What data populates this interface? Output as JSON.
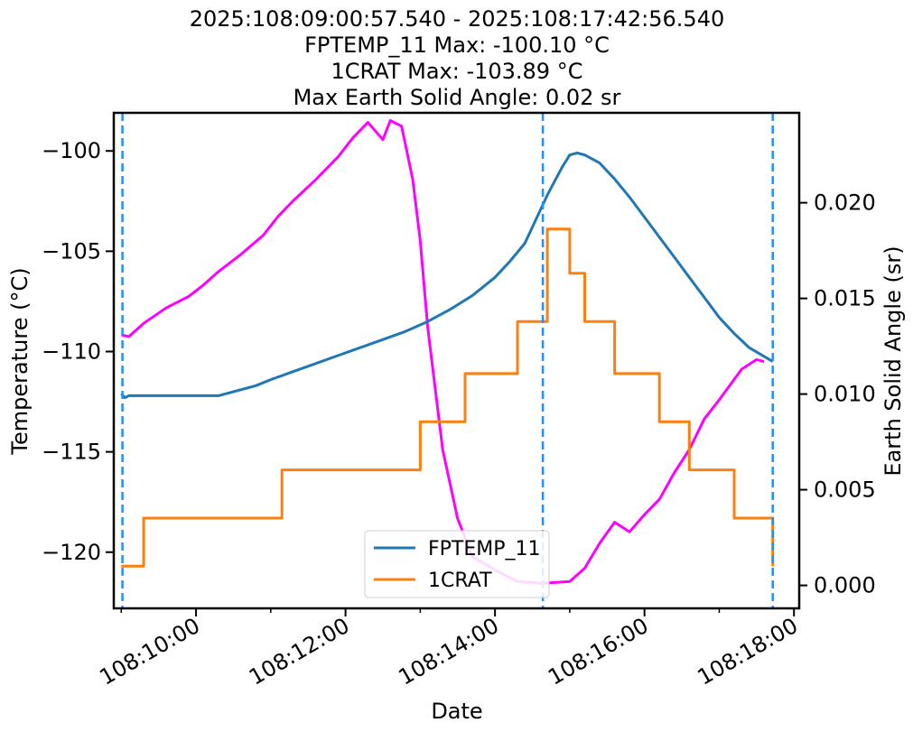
{
  "chart_data": {
    "type": "line",
    "title_lines": [
      "2025:108:09:00:57.540 - 2025:108:17:42:56.540",
      "FPTEMP_11 Max: -100.10 °C",
      "1CRAT Max: -103.89 °C",
      "Max Earth Solid Angle: 0.02 sr"
    ],
    "xlabel": "Date",
    "ylabel": "Temperature (°C)",
    "y2label": "Earth Solid Angle (sr)",
    "xlim_hours": [
      8.9,
      18.07
    ],
    "ylim": [
      -122.8,
      -98.1
    ],
    "y2lim": [
      -0.0012,
      0.0247
    ],
    "x_ticks": [
      {
        "hour": 10,
        "label": "108:10:00"
      },
      {
        "hour": 12,
        "label": "108:12:00"
      },
      {
        "hour": 14,
        "label": "108:14:00"
      },
      {
        "hour": 16,
        "label": "108:16:00"
      },
      {
        "hour": 18,
        "label": "108:18:00"
      }
    ],
    "x_minor_ticks": [
      9,
      11,
      13,
      15,
      17
    ],
    "y_ticks": [
      -120,
      -115,
      -110,
      -105,
      -100
    ],
    "y_tick_labels": [
      "−120",
      "−115",
      "−110",
      "−105",
      "−100"
    ],
    "y2_ticks": [
      0.0,
      0.005,
      0.01,
      0.015,
      0.02
    ],
    "y2_tick_labels": [
      "0.000",
      "0.005",
      "0.010",
      "0.015",
      "0.020"
    ],
    "vlines_hours": [
      9.016,
      14.64,
      17.716
    ],
    "legend": {
      "placement": "lower-center",
      "entries": [
        "FPTEMP_11",
        "1CRAT"
      ]
    },
    "colors": {
      "FPTEMP_11": "#1f77b4",
      "1CRAT": "#ff7f0e",
      "earth_solid_angle": "#ff00ff",
      "vlines": "#1e90ff"
    },
    "series": [
      {
        "name": "FPTEMP_11",
        "axis": "left",
        "x": [
          9.0,
          9.05,
          9.1,
          9.3,
          9.6,
          10.0,
          10.3,
          10.5,
          10.8,
          11.0,
          11.3,
          11.6,
          11.9,
          12.2,
          12.5,
          12.8,
          13.1,
          13.4,
          13.7,
          14.0,
          14.2,
          14.4,
          14.6,
          14.7,
          14.8,
          14.9,
          15.0,
          15.1,
          15.2,
          15.4,
          15.6,
          15.8,
          16.0,
          16.2,
          16.4,
          16.6,
          16.8,
          17.0,
          17.2,
          17.4,
          17.716
        ],
        "y": [
          -112.1,
          -112.3,
          -112.2,
          -112.2,
          -112.2,
          -112.2,
          -112.2,
          -112.0,
          -111.7,
          -111.4,
          -111.0,
          -110.6,
          -110.2,
          -109.8,
          -109.4,
          -109.0,
          -108.5,
          -107.9,
          -107.2,
          -106.3,
          -105.5,
          -104.6,
          -103.0,
          -102.2,
          -101.5,
          -100.8,
          -100.2,
          -100.1,
          -100.2,
          -100.6,
          -101.4,
          -102.3,
          -103.3,
          -104.3,
          -105.3,
          -106.3,
          -107.3,
          -108.3,
          -109.1,
          -109.8,
          -110.5
        ]
      },
      {
        "name": "1CRAT",
        "axis": "left",
        "x": [
          9.0,
          9.25,
          9.3,
          9.6,
          10.0,
          10.3,
          10.6,
          11.0,
          11.15,
          11.6,
          12.0,
          12.3,
          12.7,
          13.0,
          13.3,
          13.5,
          13.6,
          13.8,
          14.0,
          14.3,
          14.4,
          14.7,
          14.85,
          15.0,
          15.1,
          15.2,
          15.35,
          15.6,
          15.9,
          16.2,
          16.4,
          16.6,
          16.9,
          17.2,
          17.5,
          17.716
        ],
        "y": [
          -120.7,
          -120.7,
          -118.3,
          -118.3,
          -118.3,
          -118.3,
          -118.3,
          -118.3,
          -115.9,
          -115.9,
          -115.9,
          -115.9,
          -115.9,
          -113.5,
          -113.5,
          -113.5,
          -111.1,
          -111.1,
          -111.1,
          -108.5,
          -108.5,
          -103.89,
          -103.89,
          -106.1,
          -106.1,
          -108.5,
          -108.5,
          -111.1,
          -111.1,
          -113.5,
          -113.5,
          -115.9,
          -115.9,
          -118.3,
          -118.3,
          -120.7
        ]
      },
      {
        "name": "",
        "axis": "right",
        "x": [
          9.0,
          9.1,
          9.3,
          9.6,
          9.9,
          10.1,
          10.3,
          10.6,
          10.9,
          11.1,
          11.3,
          11.6,
          11.9,
          12.1,
          12.3,
          12.5,
          12.6,
          12.75,
          12.9,
          13.0,
          13.1,
          13.3,
          13.5,
          13.7,
          14.0,
          14.3,
          14.6,
          15.0,
          15.2,
          15.4,
          15.6,
          15.8,
          16.0,
          16.2,
          16.4,
          16.6,
          16.8,
          17.0,
          17.3,
          17.5,
          17.6
        ],
        "y": [
          0.0131,
          0.013,
          0.0137,
          0.0145,
          0.0151,
          0.0157,
          0.0164,
          0.0173,
          0.0183,
          0.0193,
          0.0201,
          0.0212,
          0.0224,
          0.0234,
          0.0242,
          0.0233,
          0.0243,
          0.024,
          0.0212,
          0.018,
          0.0135,
          0.0071,
          0.0035,
          0.0015,
          0.0008,
          0.0002,
          0.0001,
          0.0002,
          0.0009,
          0.0022,
          0.0033,
          0.0028,
          0.0037,
          0.0045,
          0.0059,
          0.0071,
          0.0087,
          0.0097,
          0.0113,
          0.0118,
          0.0117
        ]
      }
    ]
  }
}
